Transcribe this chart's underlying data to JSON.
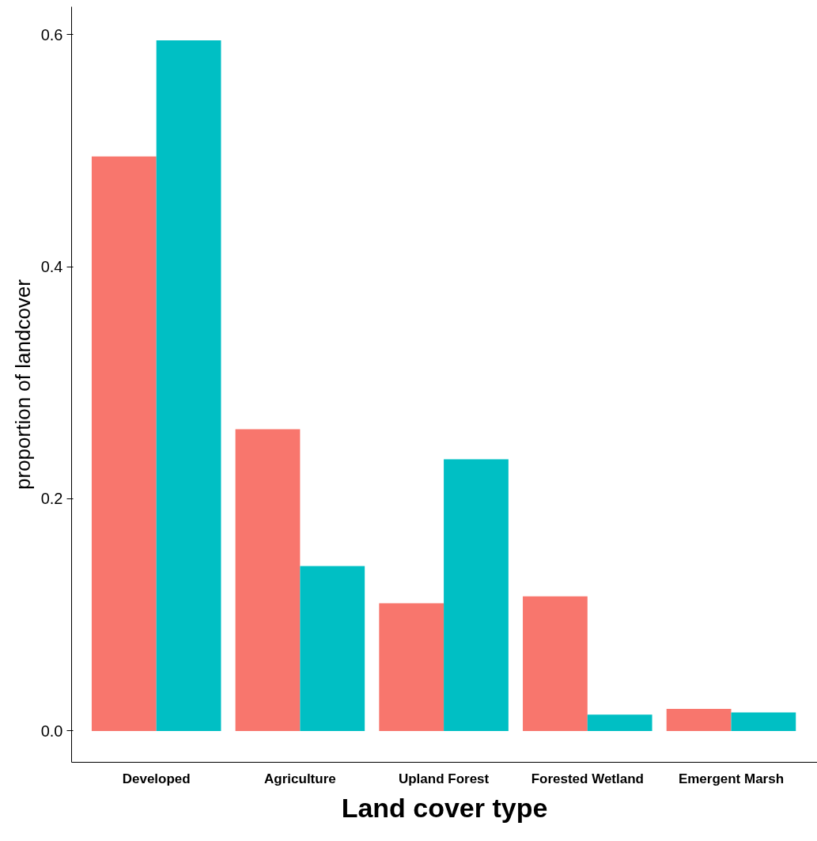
{
  "chart_data": {
    "type": "bar",
    "xlabel": "Land cover type",
    "ylabel": "proportion of landcover",
    "categories": [
      "Developed",
      "Agriculture",
      "Upland Forest",
      "Forested Wetland",
      "Emergent Marsh"
    ],
    "series": [
      {
        "color": "#f8766d",
        "values": [
          0.495,
          0.26,
          0.11,
          0.116,
          0.019
        ]
      },
      {
        "color": "#00bfc4",
        "values": [
          0.595,
          0.142,
          0.234,
          0.014,
          0.016
        ]
      }
    ],
    "ylim": [
      -0.027,
      0.624
    ],
    "yticks": [
      {
        "value": 0,
        "label": "0.0"
      },
      {
        "value": 0.2,
        "label": "0.2"
      },
      {
        "value": 0.4,
        "label": "0.4"
      },
      {
        "value": 0.6,
        "label": "0.6"
      }
    ],
    "grid": false
  }
}
